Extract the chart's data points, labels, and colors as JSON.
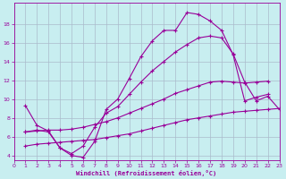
{
  "background_color": "#c8eef0",
  "line_color": "#990099",
  "grid_color": "#aabbcc",
  "xlabel": "Windchill (Refroidissement éolien,°C)",
  "xlim": [
    0,
    23
  ],
  "ylim": [
    3.5,
    20.2
  ],
  "yticks": [
    4,
    6,
    8,
    10,
    12,
    14,
    16,
    18
  ],
  "xticks": [
    0,
    1,
    2,
    3,
    4,
    5,
    6,
    7,
    8,
    9,
    10,
    11,
    12,
    13,
    14,
    15,
    16,
    17,
    18,
    19,
    20,
    21,
    22,
    23
  ],
  "line1_x": [
    1,
    2,
    3,
    4,
    5,
    6,
    7,
    8,
    9,
    10,
    11,
    12,
    13,
    14,
    15,
    16,
    17,
    18,
    19,
    20,
    21,
    22
  ],
  "line1_y": [
    9.3,
    7.2,
    6.6,
    4.8,
    4.0,
    3.8,
    5.5,
    8.9,
    10.0,
    12.2,
    14.5,
    16.2,
    17.3,
    17.3,
    19.2,
    19.0,
    18.3,
    17.3,
    14.7,
    9.8,
    10.2,
    10.5
  ],
  "line2_x": [
    1,
    2,
    3,
    4,
    5,
    6,
    7,
    8,
    9,
    10,
    11,
    12,
    13,
    14,
    15,
    16,
    17,
    18,
    19,
    20,
    21,
    22,
    23
  ],
  "line2_y": [
    6.5,
    6.7,
    6.5,
    4.8,
    4.2,
    5.0,
    7.0,
    8.5,
    9.2,
    10.5,
    11.8,
    13.0,
    14.0,
    15.0,
    15.8,
    16.5,
    16.7,
    16.5,
    14.8,
    11.8,
    9.8,
    10.3,
    8.9
  ],
  "line3_x": [
    1,
    2,
    3,
    4,
    5,
    6,
    7,
    8,
    9,
    10,
    11,
    12,
    13,
    14,
    15,
    16,
    17,
    18,
    19,
    20,
    21,
    22
  ],
  "line3_y": [
    6.5,
    6.6,
    6.7,
    6.7,
    6.8,
    7.0,
    7.3,
    7.6,
    8.0,
    8.5,
    9.0,
    9.5,
    10.0,
    10.6,
    11.0,
    11.4,
    11.8,
    11.9,
    11.8,
    11.7,
    11.8,
    11.9
  ],
  "line4_x": [
    1,
    2,
    3,
    4,
    5,
    6,
    7,
    8,
    9,
    10,
    11,
    12,
    13,
    14,
    15,
    16,
    17,
    18,
    19,
    20,
    21,
    22,
    23
  ],
  "line4_y": [
    5.0,
    5.2,
    5.3,
    5.4,
    5.5,
    5.6,
    5.7,
    5.9,
    6.1,
    6.3,
    6.6,
    6.9,
    7.2,
    7.5,
    7.8,
    8.0,
    8.2,
    8.4,
    8.6,
    8.7,
    8.8,
    8.9,
    9.0
  ]
}
